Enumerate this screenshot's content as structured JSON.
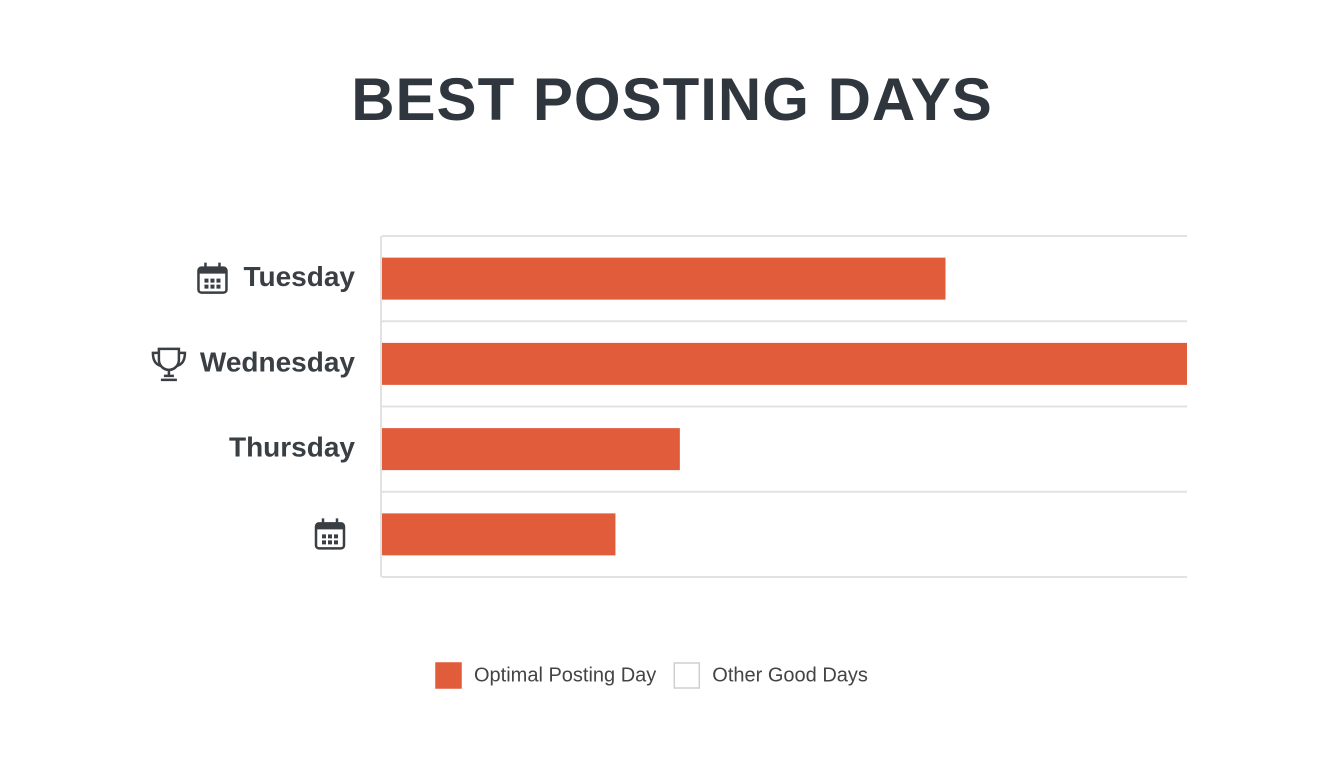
{
  "chart_data": {
    "type": "bar",
    "orientation": "horizontal",
    "title": "BEST POSTING DAYS",
    "categories": [
      "Tuesday",
      "Wednesday",
      "Thursday",
      null
    ],
    "category_icons": [
      "calendar",
      "trophy",
      null,
      "calendar"
    ],
    "series": [
      {
        "name": "Optimal Posting Day",
        "color": "#e05c3b",
        "values": [
          70,
          100,
          37,
          29
        ]
      },
      {
        "name": "Other Good Days",
        "color": "#ffffff",
        "values": [
          null,
          null,
          null,
          null
        ]
      }
    ],
    "xlim": [
      0,
      100
    ],
    "grid": true
  }
}
